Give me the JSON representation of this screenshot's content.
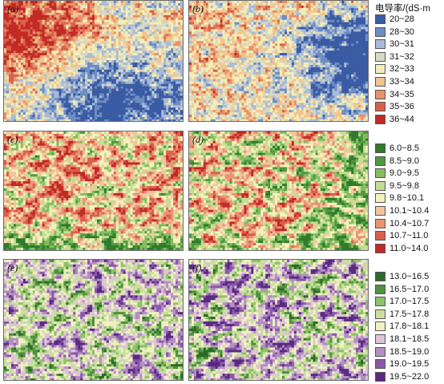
{
  "legend_title": "电导率/(dS·m",
  "panels": [
    {
      "label": "(a)",
      "palette": "conductivity",
      "pattern": "a"
    },
    {
      "label": "(b)",
      "palette": "conductivity",
      "pattern": "b"
    },
    {
      "label": "(c)",
      "palette": "green_red",
      "pattern": "c"
    },
    {
      "label": "(d)",
      "palette": "green_red",
      "pattern": "d"
    },
    {
      "label": "(e)",
      "palette": "purple_green",
      "pattern": "e"
    },
    {
      "label": "(f)",
      "palette": "purple_green",
      "pattern": "f"
    }
  ],
  "legends": [
    {
      "name": "conductivity",
      "items": [
        {
          "label": "20~28",
          "color": "#3a5ba3"
        },
        {
          "label": "28~30",
          "color": "#6d8cc4"
        },
        {
          "label": "30~31",
          "color": "#a9bbd9"
        },
        {
          "label": "31~32",
          "color": "#d8d9c0"
        },
        {
          "label": "32~33",
          "color": "#f3edb8"
        },
        {
          "label": "33~34",
          "color": "#f1c48d"
        },
        {
          "label": "34~35",
          "color": "#e8906a"
        },
        {
          "label": "35~36",
          "color": "#d9614a"
        },
        {
          "label": "36~44",
          "color": "#c22a25"
        }
      ]
    },
    {
      "name": "green_red",
      "items": [
        {
          "label": "6.0~8.5",
          "color": "#2f7a2b"
        },
        {
          "label": "8.5~9.0",
          "color": "#4f9a3f"
        },
        {
          "label": "9.0~9.5",
          "color": "#86bc5f"
        },
        {
          "label": "9.5~9.8",
          "color": "#c4dd92"
        },
        {
          "label": "9.8~10.1",
          "color": "#f5f1be"
        },
        {
          "label": "10.1~10.4",
          "color": "#f3c59c"
        },
        {
          "label": "10.4~10.7",
          "color": "#e99373"
        },
        {
          "label": "10.7~11.0",
          "color": "#db5f4a"
        },
        {
          "label": "11.0~14.0",
          "color": "#c02a26"
        }
      ]
    },
    {
      "name": "purple_green",
      "items": [
        {
          "label": "13.0~16.5",
          "color": "#2c6a2c"
        },
        {
          "label": "16.5~17.0",
          "color": "#4f9140"
        },
        {
          "label": "17.0~17.5",
          "color": "#8fc06b"
        },
        {
          "label": "17.5~17.8",
          "color": "#c9e09c"
        },
        {
          "label": "17.8~18.1",
          "color": "#f1f0c3"
        },
        {
          "label": "18.1~18.5",
          "color": "#ddc6d3"
        },
        {
          "label": "18.5~19.0",
          "color": "#b38fc2"
        },
        {
          "label": "19.0~19.5",
          "color": "#8a58a9"
        },
        {
          "label": "19.5~22.0",
          "color": "#5a2a82"
        }
      ]
    }
  ]
}
